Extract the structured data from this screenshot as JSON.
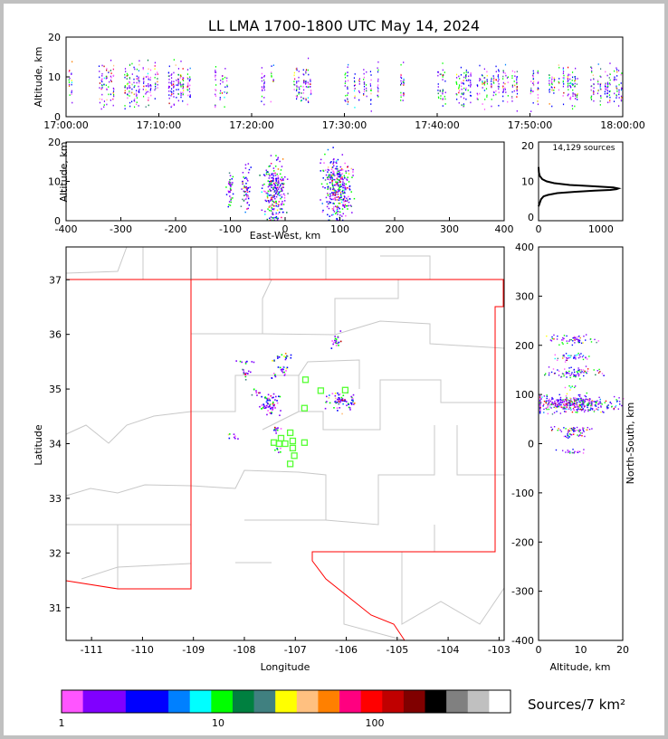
{
  "title": "LL LMA 1700-1800 UTC May 14, 2024",
  "colorbar": {
    "label": "Sources/7 km²",
    "tick_labels": [
      "1",
      "10",
      "100"
    ],
    "colors": [
      "#ff55ff",
      "#8000ff",
      "#8000ff",
      "#0000ff",
      "#0000ff",
      "#0080ff",
      "#00ffff",
      "#00ff00",
      "#008040",
      "#408080",
      "#ffff00",
      "#ffc080",
      "#ff8000",
      "#ff0080",
      "#ff0000",
      "#c00000",
      "#800000",
      "#000000",
      "#808080",
      "#c0c0c0",
      "#ffffff"
    ]
  },
  "chart_data": [
    {
      "id": "time-altitude",
      "type": "scatter",
      "xlabel": "",
      "ylabel": "Altitude, km",
      "xlim": [
        "17:00:00",
        "18:00:00"
      ],
      "ylim": [
        0,
        20
      ],
      "xtick_labels": [
        "17:00:00",
        "17:10:00",
        "17:20:00",
        "17:30:00",
        "17:40:00",
        "17:50:00",
        "18:00:00"
      ],
      "ytick_labels": [
        "0",
        "10",
        "20"
      ],
      "activity_minutes": [
        [
          0,
          1
        ],
        [
          2.5,
          13.5
        ],
        [
          16,
          17.5
        ],
        [
          20.5,
          22.5
        ],
        [
          24.5,
          26.5
        ],
        [
          30,
          34
        ],
        [
          35.5,
          36.5
        ],
        [
          40,
          41
        ],
        [
          42,
          49
        ],
        [
          50,
          60
        ]
      ]
    },
    {
      "id": "east-west-altitude",
      "type": "scatter",
      "xlabel": "East-West, km",
      "ylabel": "Altitude, km",
      "xlim": [
        -400,
        400
      ],
      "ylim": [
        0,
        20
      ],
      "xtick_labels": [
        "-400",
        "-300",
        "-200",
        "-100",
        "0",
        "100",
        "200",
        "300",
        "400"
      ],
      "ytick_labels": [
        "0",
        "10",
        "20"
      ],
      "clusters": [
        [
          -102,
          8,
          3,
          1.5,
          40
        ],
        [
          -72,
          8.5,
          4,
          2,
          60
        ],
        [
          -20,
          7.5,
          10,
          3,
          260
        ],
        [
          95,
          8.5,
          12,
          3,
          320
        ]
      ]
    },
    {
      "id": "altitude-histogram",
      "type": "line",
      "annotation": "14,129 sources",
      "xlim": [
        0,
        1350
      ],
      "ylim": [
        -1,
        21
      ],
      "xtick_labels": [
        "0",
        "1000"
      ],
      "ytick_labels": [
        "0",
        "10",
        "20"
      ],
      "x": [
        0,
        20,
        40,
        80,
        150,
        300,
        600,
        900,
        1150,
        1250,
        1280,
        1200,
        900,
        500,
        250,
        130,
        60,
        20,
        5,
        0
      ],
      "y": [
        3,
        4,
        5,
        5.8,
        6.2,
        6.7,
        7.1,
        7.4,
        7.6,
        7.8,
        8.0,
        8.3,
        8.6,
        9.0,
        9.5,
        10,
        10.6,
        11.5,
        12.5,
        14
      ]
    },
    {
      "id": "plan-view",
      "type": "scatter",
      "xlabel": "Longitude",
      "ylabel": "Latitude",
      "xlim": [
        -111.5,
        -102.9
      ],
      "ylim": [
        30.4,
        37.6
      ],
      "xtick_labels": [
        "-111",
        "-110",
        "-109",
        "-108",
        "-107",
        "-106",
        "-105",
        "-104",
        "-103"
      ],
      "ytick_labels": [
        "31",
        "32",
        "33",
        "34",
        "35",
        "36"
      ],
      "ytick_top": "37",
      "clusters": [
        [
          -106.2,
          35.9,
          0.05,
          0.07,
          20
        ],
        [
          -107.2,
          35.6,
          0.06,
          0.03,
          12
        ],
        [
          -107.4,
          35.55,
          0.04,
          0.03,
          6
        ],
        [
          -108.0,
          35.5,
          0.08,
          0.02,
          8
        ],
        [
          -108.0,
          35.3,
          0.05,
          0.05,
          14
        ],
        [
          -107.25,
          35.35,
          0.06,
          0.05,
          16
        ],
        [
          -107.45,
          35.25,
          0.03,
          0.03,
          6
        ],
        [
          -107.8,
          34.95,
          0.05,
          0.05,
          8
        ],
        [
          -107.5,
          34.75,
          0.1,
          0.1,
          70
        ],
        [
          -106.1,
          34.78,
          0.15,
          0.08,
          70
        ],
        [
          -107.4,
          34.28,
          0.05,
          0.03,
          10
        ],
        [
          -107.35,
          33.9,
          0.04,
          0.04,
          6
        ],
        [
          -108.25,
          34.15,
          0.06,
          0.03,
          8
        ]
      ],
      "stations": [
        [
          -106.8,
          35.17
        ],
        [
          -106.5,
          34.97
        ],
        [
          -106.02,
          34.98
        ],
        [
          -106.82,
          34.65
        ],
        [
          -107.1,
          34.2
        ],
        [
          -107.28,
          34.1
        ],
        [
          -107.42,
          34.02
        ],
        [
          -107.32,
          34.0
        ],
        [
          -107.2,
          34.0
        ],
        [
          -107.05,
          34.05
        ],
        [
          -106.82,
          34.02
        ],
        [
          -107.05,
          33.92
        ],
        [
          -107.02,
          33.78
        ],
        [
          -107.1,
          33.63
        ]
      ]
    },
    {
      "id": "altitude-north-south",
      "type": "scatter",
      "xlabel": "Altitude, km",
      "ylabel": "North-South, km",
      "xlim": [
        0,
        20
      ],
      "ylim": [
        -400,
        400
      ],
      "xtick_labels": [
        "0",
        "10",
        "20"
      ],
      "ytick_labels": [
        "-400",
        "-300",
        "-200",
        "-100",
        "0",
        "100",
        "200",
        "300",
        "400"
      ],
      "clusters": [
        [
          8,
          212,
          2.5,
          5,
          60
        ],
        [
          8,
          178,
          2,
          4,
          40
        ],
        [
          8,
          145,
          3,
          6,
          80
        ],
        [
          8,
          115,
          1.5,
          2,
          8
        ],
        [
          8,
          82,
          5,
          8,
          420
        ],
        [
          8,
          30,
          2.5,
          3,
          50
        ],
        [
          8,
          17,
          2,
          2,
          20
        ],
        [
          8,
          -15,
          1.5,
          2,
          20
        ]
      ]
    }
  ]
}
